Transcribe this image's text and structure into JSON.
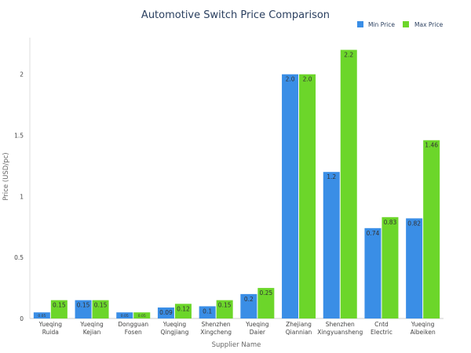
{
  "chart_data": {
    "type": "bar",
    "title": "Automotive Switch Price Comparison",
    "xlabel": "Supplier Name",
    "ylabel": "Price (USD/pc)",
    "ylim": [
      0,
      2.3
    ],
    "yticks": [
      0,
      0.5,
      1,
      1.5,
      2
    ],
    "ytick_labels": [
      "0",
      "0.5",
      "1",
      "1.5",
      "2"
    ],
    "legend_position": "top-right",
    "grid": false,
    "categories": [
      [
        "Yueqing",
        "Ruida"
      ],
      [
        "Yueqing",
        "Kejian"
      ],
      [
        "Dongguan",
        "Fosen"
      ],
      [
        "Yueqing",
        "Qingjiang"
      ],
      [
        "Shenzhen",
        "Xingcheng"
      ],
      [
        "Yueqing",
        "Daier"
      ],
      [
        "Zhejiang",
        "Qiannian"
      ],
      [
        "Shenzhen",
        "Xingyuansheng"
      ],
      [
        "Cntd",
        "Electric"
      ],
      [
        "Yueqing",
        "Aibeiken"
      ]
    ],
    "series": [
      {
        "name": "Min Price",
        "color": "#3a8ee6",
        "values": [
          0.05,
          0.15,
          0.05,
          0.09,
          0.1,
          0.2,
          2.0,
          1.2,
          0.74,
          0.82
        ],
        "labels": [
          "0.05",
          "0.15",
          "0.05",
          "0.09",
          "0.1",
          "0.2",
          "2.0",
          "1.2",
          "0.74",
          "0.82"
        ]
      },
      {
        "name": "Max Price",
        "color": "#6cd62a",
        "values": [
          0.15,
          0.15,
          0.05,
          0.12,
          0.15,
          0.25,
          2.0,
          2.2,
          0.83,
          1.46
        ],
        "labels": [
          "0.15",
          "0.15",
          "0.05",
          "0.12",
          "0.15",
          "0.25",
          "2.0",
          "2.2",
          "0.83",
          "1.46"
        ]
      }
    ]
  }
}
